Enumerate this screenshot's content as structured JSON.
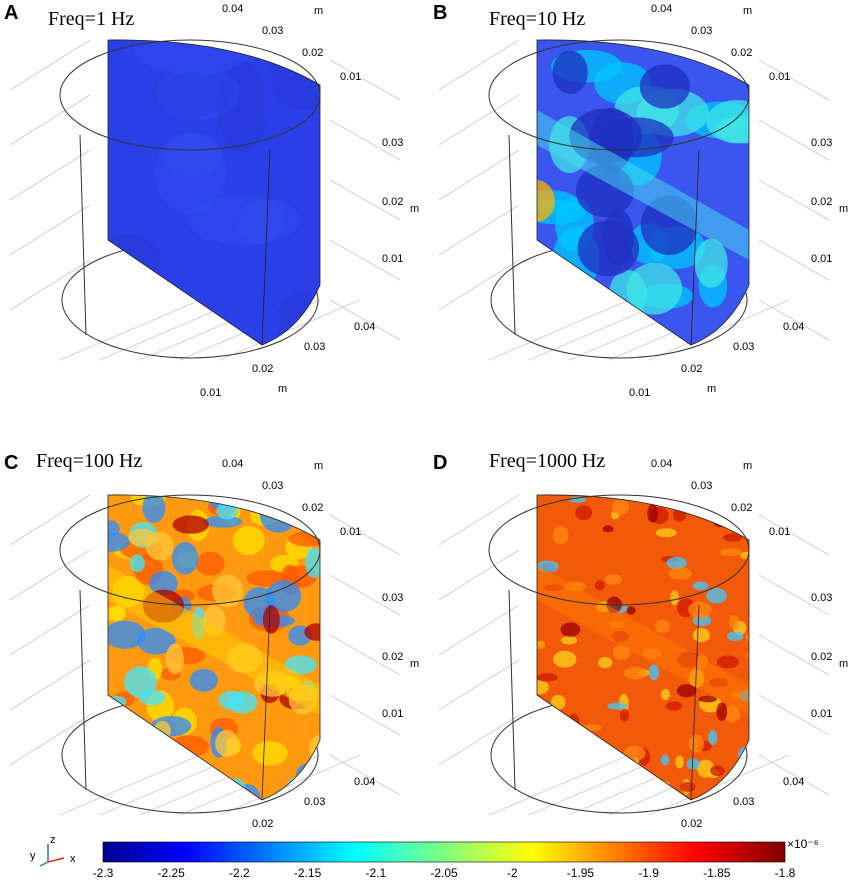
{
  "panels": [
    {
      "label": "A",
      "title": "Freq=1 Hz",
      "palette": "p1"
    },
    {
      "label": "B",
      "title": "Freq=10 Hz",
      "palette": "p10"
    },
    {
      "label": "C",
      "title": "Freq=100 Hz",
      "palette": "p100"
    },
    {
      "label": "D",
      "title": "Freq=1000 Hz",
      "palette": "p1000"
    }
  ],
  "axis_ticks": {
    "top": [
      "0.04",
      "0.03",
      "0.02",
      "0.01"
    ],
    "right": [
      "0.03",
      "0.02",
      "0.01"
    ],
    "bottom": [
      "0.04",
      "0.03",
      "0.02",
      "0.01"
    ],
    "unit": "m"
  },
  "axes_triad": {
    "z": "z",
    "y": "y",
    "x": "x"
  },
  "colorbar": {
    "ticks": [
      "-2.3",
      "-2.25",
      "-2.2",
      "-2.15",
      "-2.1",
      "-2.05",
      "-2",
      "-1.95",
      "-1.9",
      "-1.85",
      "-1.8"
    ],
    "exponent": "×10⁻⁶",
    "range": [
      -2.3,
      -1.8
    ],
    "colormap": "jet"
  }
}
